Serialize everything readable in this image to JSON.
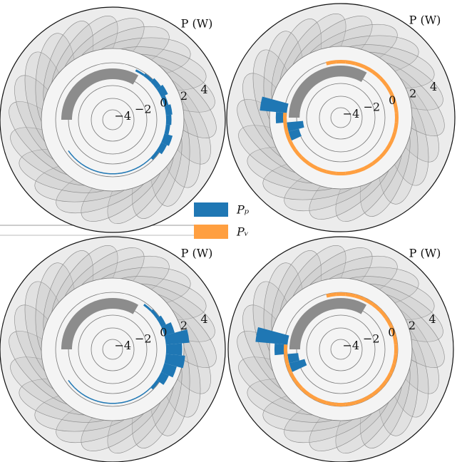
{
  "chart_data": [
    {
      "type": "polar_bar",
      "rlabel": "P (W)",
      "rlim": [
        -5,
        5
      ],
      "rticks": [
        {
          "value": -4,
          "label": "−4"
        },
        {
          "value": -2,
          "label": "−2"
        },
        0,
        2,
        4
      ],
      "theta": [
        0,
        10,
        20,
        30,
        40,
        50,
        60,
        70,
        80,
        90,
        100,
        110,
        120,
        130,
        140,
        150,
        160,
        170,
        180,
        190,
        200,
        210,
        220,
        230,
        240,
        250,
        260,
        270,
        280,
        290,
        300,
        310,
        320,
        330,
        340,
        350
      ],
      "series": [
        {
          "color": "#1f77b4",
          "values": [
            0.5,
            0.6,
            0.4,
            0.7,
            0.5,
            0.3,
            0.2,
            null,
            null,
            null,
            null,
            null,
            null,
            null,
            null,
            null,
            null,
            null,
            null,
            null,
            null,
            null,
            0.1,
            0.1,
            0.1,
            0.1,
            0.1,
            0.1,
            0.1,
            0.1,
            0.1,
            0.1,
            0.3,
            0.6,
            0.8,
            0.4
          ]
        },
        {
          "color": "#ff9f40",
          "values": [
            null,
            null,
            null,
            null,
            null,
            null,
            null,
            null,
            null,
            null,
            null,
            null,
            null,
            null,
            null,
            null,
            null,
            null,
            null,
            null,
            null,
            null,
            null,
            null,
            null,
            null,
            null,
            null,
            null,
            null,
            null,
            null,
            null,
            null,
            null,
            null
          ]
        }
      ]
    },
    {
      "type": "polar_bar",
      "rlabel": "P (W)",
      "rlim": [
        -5,
        5
      ],
      "rticks": [
        {
          "value": -4,
          "label": "−4"
        },
        {
          "value": -2,
          "label": "−2"
        },
        0,
        2,
        4
      ],
      "theta": [
        0,
        10,
        20,
        30,
        40,
        50,
        60,
        70,
        80,
        90,
        100,
        110,
        120,
        130,
        140,
        150,
        160,
        170,
        180,
        190,
        200,
        210,
        220,
        230,
        240,
        250,
        260,
        270,
        280,
        290,
        300,
        310,
        320,
        330,
        340,
        350
      ],
      "series": [
        {
          "color": "#1f77b4",
          "values": [
            null,
            null,
            null,
            null,
            null,
            null,
            null,
            null,
            null,
            null,
            null,
            null,
            null,
            null,
            null,
            null,
            null,
            2.5,
            1.0,
            -1.5,
            -1.0,
            null,
            null,
            null,
            null,
            null,
            null,
            null,
            null,
            null,
            null,
            null,
            null,
            null,
            null,
            null
          ]
        },
        {
          "color": "#ff9f40",
          "values": [
            0.2,
            0.2,
            0.2,
            0.2,
            0.2,
            0.2,
            0.2,
            0.2,
            0.2,
            0.2,
            0.2,
            null,
            null,
            null,
            null,
            null,
            null,
            null,
            0.2,
            0.2,
            0.2,
            0.2,
            0.2,
            0.2,
            0.2,
            0.2,
            0.2,
            0.2,
            0.2,
            0.2,
            0.2,
            0.2,
            0.2,
            0.2,
            0.2,
            0.2
          ]
        }
      ]
    },
    {
      "type": "polar_bar",
      "rlabel": "P (W)",
      "rlim": [
        -5,
        5
      ],
      "rticks": [
        {
          "value": -4,
          "label": "−4"
        },
        {
          "value": -2,
          "label": "−2"
        },
        0,
        2,
        4
      ],
      "theta": [
        0,
        10,
        20,
        30,
        40,
        50,
        60,
        70,
        80,
        90,
        100,
        110,
        120,
        130,
        140,
        150,
        160,
        170,
        180,
        190,
        200,
        210,
        220,
        230,
        240,
        250,
        260,
        270,
        280,
        290,
        300,
        310,
        320,
        330,
        340,
        350
      ],
      "series": [
        {
          "color": "#1f77b4",
          "values": [
            1.5,
            2.2,
            1.0,
            0.5,
            0.3,
            0.2,
            null,
            null,
            null,
            null,
            null,
            null,
            null,
            null,
            null,
            null,
            null,
            null,
            null,
            null,
            null,
            null,
            0.1,
            0.1,
            0.1,
            0.1,
            0.1,
            0.1,
            0.1,
            0.1,
            0.1,
            0.1,
            0.3,
            0.8,
            1.2,
            1.8
          ]
        },
        {
          "color": "#ff9f40",
          "values": [
            null,
            null,
            null,
            null,
            null,
            null,
            null,
            null,
            null,
            null,
            null,
            null,
            null,
            null,
            null,
            null,
            null,
            null,
            null,
            null,
            null,
            null,
            null,
            null,
            null,
            null,
            null,
            null,
            null,
            null,
            null,
            null,
            null,
            null,
            null,
            null
          ]
        }
      ]
    },
    {
      "type": "polar_bar",
      "rlabel": "P (W)",
      "rlim": [
        -5,
        5
      ],
      "rticks": [
        {
          "value": -4,
          "label": "−4"
        },
        {
          "value": -2,
          "label": "−2"
        },
        0,
        2,
        4
      ],
      "theta": [
        0,
        10,
        20,
        30,
        40,
        50,
        60,
        70,
        80,
        90,
        100,
        110,
        120,
        130,
        140,
        150,
        160,
        170,
        180,
        190,
        200,
        210,
        220,
        230,
        240,
        250,
        260,
        270,
        280,
        290,
        300,
        310,
        320,
        330,
        340,
        350
      ],
      "series": [
        {
          "color": "#1f77b4",
          "values": [
            null,
            null,
            null,
            null,
            null,
            null,
            null,
            null,
            null,
            null,
            null,
            null,
            null,
            null,
            null,
            null,
            null,
            3.0,
            1.2,
            -1.0,
            -1.5,
            null,
            null,
            null,
            null,
            null,
            0.1,
            0.1,
            0.1,
            0.1,
            0.1,
            null,
            null,
            null,
            null,
            null
          ]
        },
        {
          "color": "#ff9f40",
          "values": [
            0.2,
            0.2,
            0.2,
            0.2,
            0.2,
            0.2,
            0.2,
            0.2,
            0.2,
            0.2,
            0.2,
            null,
            null,
            null,
            null,
            null,
            null,
            null,
            0.2,
            0.2,
            0.2,
            0.2,
            0.2,
            0.2,
            0.2,
            0.2,
            0.2,
            0.2,
            0.2,
            0.2,
            0.2,
            0.2,
            0.2,
            0.2,
            0.2,
            0.2
          ]
        }
      ]
    }
  ],
  "legend": [
    {
      "name": "Pₚ",
      "color": "#1f77b4"
    },
    {
      "name": "Pᵥ",
      "color": "#ff9f40"
    }
  ]
}
